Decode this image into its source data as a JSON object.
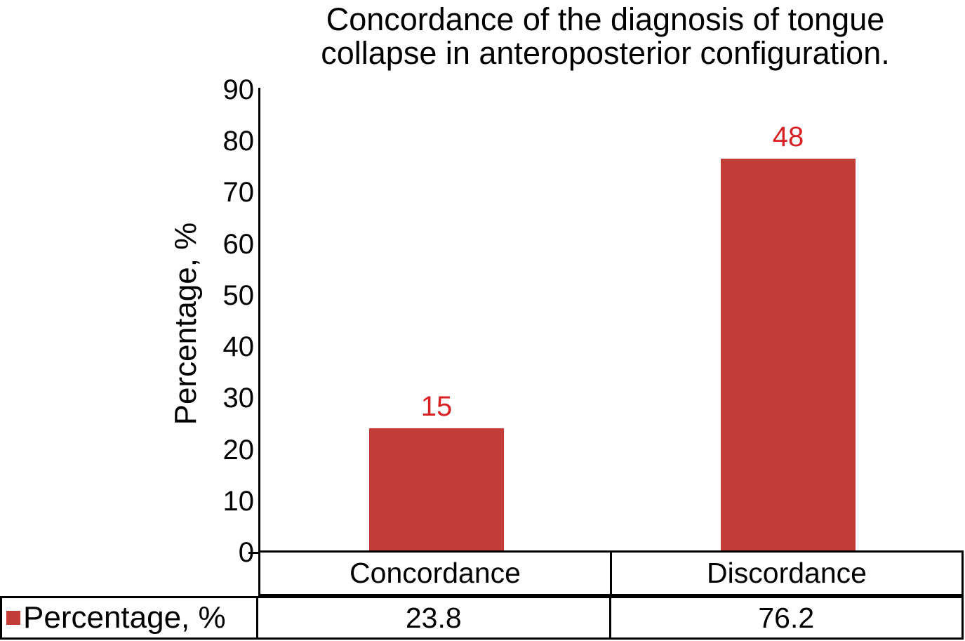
{
  "chart_data": {
    "type": "bar",
    "title": "Concordance of the diagnosis of tongue collapse in anteroposterior configuration.",
    "title_lines": [
      "Concordance of the diagnosis of tongue",
      "collapse in anteroposterior configuration."
    ],
    "ylabel": "Percentage, %",
    "categories": [
      "Concordance",
      "Discordance"
    ],
    "series": [
      {
        "name": "Percentage, %",
        "values": [
          23.8,
          76.2
        ],
        "value_labels": [
          "23.8",
          "76.2"
        ]
      }
    ],
    "bar_annotations": [
      "15",
      "48"
    ],
    "ylim": [
      0,
      90
    ],
    "yticks": [
      0,
      10,
      20,
      30,
      40,
      50,
      60,
      70,
      80,
      90
    ],
    "grid": false,
    "legend_position": "bottom table row",
    "colors": {
      "bar": "#c23c38",
      "annotation": "#d92125",
      "legend_marker": "#c23c38",
      "axis": "#000000",
      "text": "#000000"
    }
  }
}
